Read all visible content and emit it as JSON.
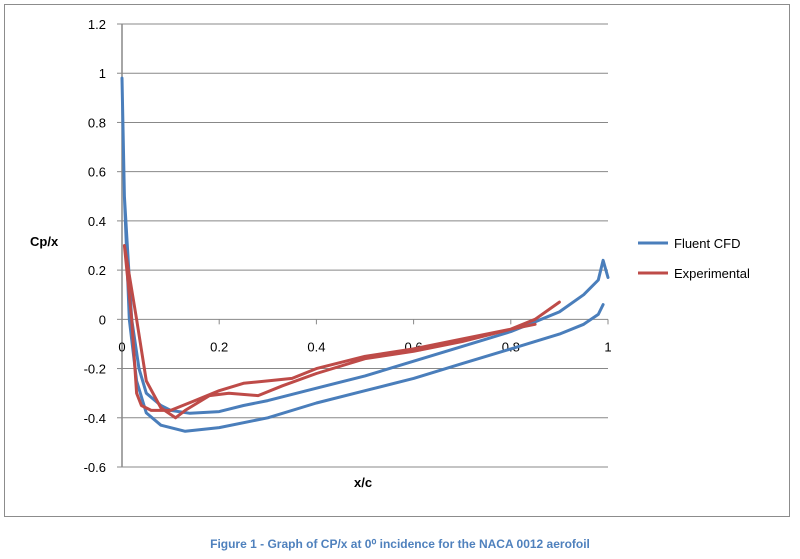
{
  "chart_data": {
    "type": "line",
    "title": "",
    "xlabel": "x/c",
    "ylabel": "Cp/x",
    "xlim": [
      0,
      1
    ],
    "ylim": [
      -0.6,
      1.2
    ],
    "xticks": [
      "0",
      "0.2",
      "0.4",
      "0.6",
      "0.8",
      "1"
    ],
    "xtick_values": [
      0,
      0.2,
      0.4,
      0.6,
      0.8,
      1
    ],
    "yticks": [
      "1.2",
      "1",
      "0.8",
      "0.6",
      "0.4",
      "0.2",
      "0",
      "-0.2",
      "-0.4",
      "-0.6"
    ],
    "ytick_values": [
      1.2,
      1,
      0.8,
      0.6,
      0.4,
      0.2,
      0,
      -0.2,
      -0.4,
      -0.6
    ],
    "grid": true,
    "legend_position": "right",
    "series": [
      {
        "name": "Fluent CFD",
        "color": "#4a7ebb",
        "x": [
          0.99,
          0.98,
          0.95,
          0.9,
          0.8,
          0.7,
          0.6,
          0.5,
          0.4,
          0.3,
          0.2,
          0.13,
          0.08,
          0.05,
          0.03,
          0.015,
          0.005,
          0,
          0.005,
          0.02,
          0.035,
          0.05,
          0.08,
          0.1,
          0.14,
          0.2,
          0.25,
          0.3,
          0.4,
          0.5,
          0.6,
          0.7,
          0.8,
          0.85,
          0.9,
          0.95,
          0.98,
          0.99,
          1.0
        ],
        "y": [
          0.06,
          0.02,
          -0.02,
          -0.06,
          -0.12,
          -0.18,
          -0.24,
          -0.29,
          -0.34,
          -0.4,
          -0.44,
          -0.455,
          -0.43,
          -0.38,
          -0.25,
          0.0,
          0.5,
          0.98,
          0.5,
          0.0,
          -0.2,
          -0.3,
          -0.35,
          -0.37,
          -0.382,
          -0.375,
          -0.35,
          -0.33,
          -0.28,
          -0.23,
          -0.17,
          -0.11,
          -0.05,
          -0.01,
          0.03,
          0.1,
          0.16,
          0.24,
          0.17
        ]
      },
      {
        "name": "Experimental",
        "color": "#be4b48",
        "x": [
          0.85,
          0.8,
          0.7,
          0.6,
          0.5,
          0.4,
          0.33,
          0.28,
          0.22,
          0.18,
          0.13,
          0.11,
          0.08,
          0.05,
          0.03,
          0.005,
          0.02,
          0.03,
          0.04,
          0.06,
          0.1,
          0.15,
          0.2,
          0.25,
          0.3,
          0.35,
          0.4,
          0.5,
          0.6,
          0.7,
          0.8,
          0.85,
          0.9
        ],
        "y": [
          -0.02,
          -0.04,
          -0.09,
          -0.13,
          -0.16,
          -0.22,
          -0.27,
          -0.31,
          -0.3,
          -0.31,
          -0.37,
          -0.4,
          -0.36,
          -0.25,
          0.0,
          0.3,
          0.0,
          -0.3,
          -0.35,
          -0.37,
          -0.37,
          -0.33,
          -0.29,
          -0.26,
          -0.25,
          -0.24,
          -0.2,
          -0.15,
          -0.12,
          -0.08,
          -0.04,
          0.0,
          0.07
        ]
      }
    ]
  },
  "caption": "Figure 1 - Graph of CP/x at 0⁰ incidence for the NACA 0012 aerofoil"
}
